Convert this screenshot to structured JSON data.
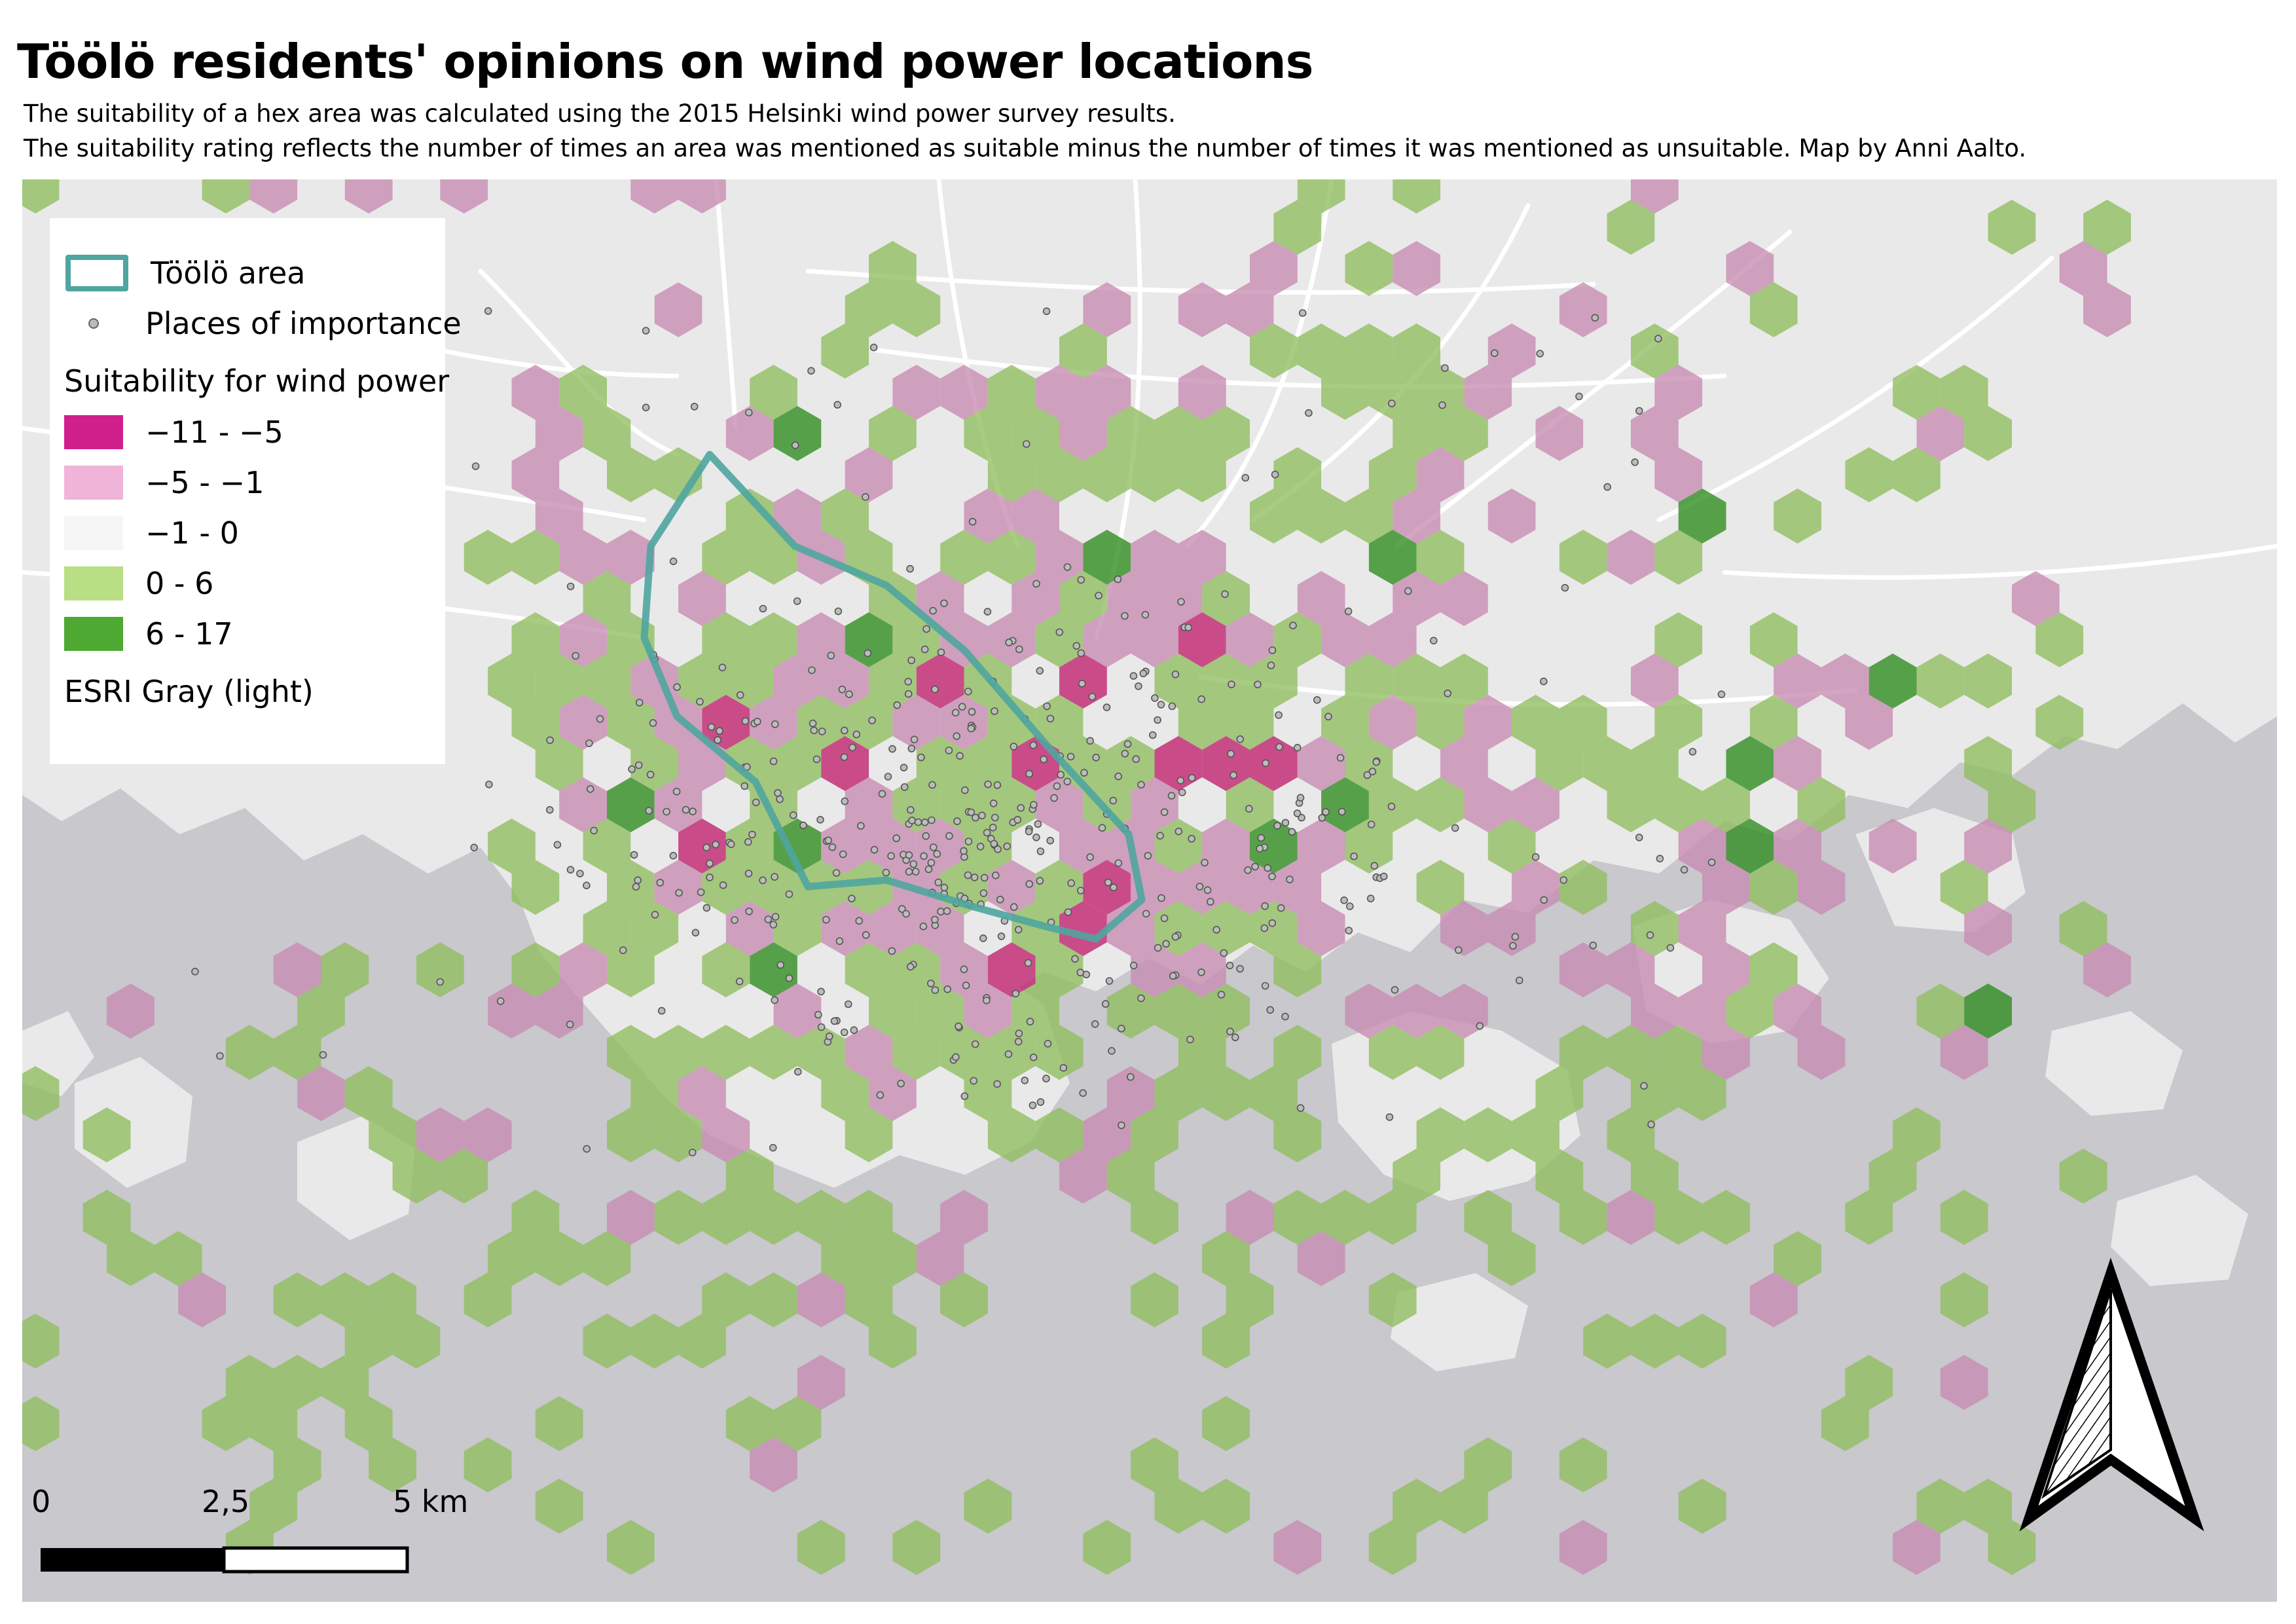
{
  "title": "Töölö residents' opinions on wind power locations",
  "subtitle_line1": "The suitability of a hex area was calculated using the 2015 Helsinki wind power survey results.",
  "subtitle_line2": "The suitability rating reflects the number of times an area was mentioned as suitable minus the number of times it was mentioned as unsuitable. Map by Anni Aalto.",
  "legend": {
    "area_label": "Töölö area",
    "places_label": "Places of importance",
    "suitability_heading": "Suitability for wind power",
    "classes": [
      {
        "label": "−11 - −5",
        "color": "#d0208c"
      },
      {
        "label": "−5 - −1",
        "color": "#f0b4d8"
      },
      {
        "label": "−1 - 0",
        "color": "#f6f6f6"
      },
      {
        "label": "0 - 6",
        "color": "#b8df84"
      },
      {
        "label": "6 - 17",
        "color": "#4da932"
      }
    ],
    "basemap_label": "ESRI Gray (light)"
  },
  "scale_bar": {
    "labels": [
      "0",
      "2,5",
      "5 km"
    ]
  },
  "colors": {
    "land": "#e9e9e9",
    "water": "#c8c8cd",
    "toolo_outline": "#4fa5a0",
    "hex_strong_neg": "#c0206e",
    "hex_neg": "#c88ab2",
    "hex_pos": "#8fbe5e",
    "hex_strong_pos": "#2e8c1e"
  },
  "north_arrow_icon": "north-arrow-icon"
}
